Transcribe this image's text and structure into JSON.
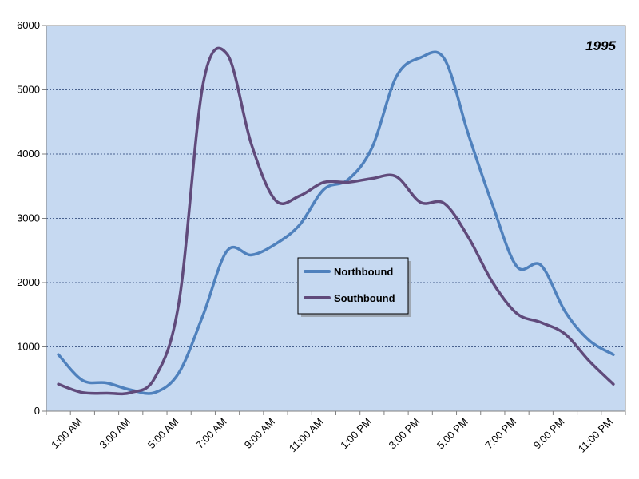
{
  "chart_data": {
    "type": "line",
    "annotation": "1995",
    "x": [
      "12:00 AM",
      "1:00 AM",
      "2:00 AM",
      "3:00 AM",
      "4:00 AM",
      "5:00 AM",
      "6:00 AM",
      "7:00 AM",
      "8:00 AM",
      "9:00 AM",
      "10:00 AM",
      "11:00 AM",
      "12:00 PM",
      "1:00 PM",
      "2:00 PM",
      "3:00 PM",
      "4:00 PM",
      "5:00 PM",
      "6:00 PM",
      "7:00 PM",
      "8:00 PM",
      "9:00 PM",
      "10:00 PM",
      "11:00 PM"
    ],
    "x_tick_labels": [
      "1:00 AM",
      "3:00 AM",
      "5:00 AM",
      "7:00 AM",
      "9:00 AM",
      "11:00 AM",
      "1:00 PM",
      "3:00 PM",
      "5:00 PM",
      "7:00 PM",
      "9:00 PM",
      "11:00 PM"
    ],
    "y_ticks": [
      0,
      1000,
      2000,
      3000,
      4000,
      5000,
      6000
    ],
    "ylim": [
      0,
      6000
    ],
    "grid": "horizontal dashed",
    "legend_position": "center",
    "series": [
      {
        "name": "Northbound",
        "color": "#4f81bd",
        "values": [
          880,
          480,
          440,
          330,
          290,
          600,
          1500,
          2500,
          2430,
          2600,
          2900,
          3450,
          3600,
          4100,
          5200,
          5500,
          5480,
          4300,
          3200,
          2250,
          2270,
          1550,
          1100,
          880
        ]
      },
      {
        "name": "Southbound",
        "color": "#604a7b",
        "values": [
          420,
          290,
          280,
          290,
          520,
          1700,
          5100,
          5550,
          4150,
          3280,
          3350,
          3560,
          3560,
          3620,
          3650,
          3250,
          3230,
          2700,
          2000,
          1520,
          1380,
          1200,
          780,
          420
        ]
      }
    ]
  }
}
